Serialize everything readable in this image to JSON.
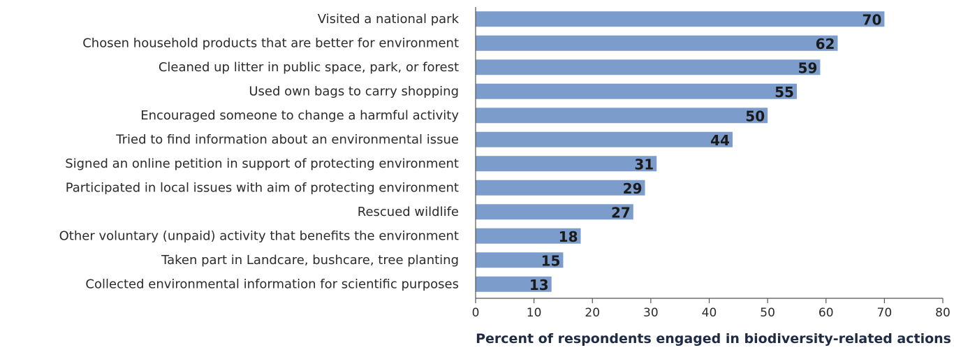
{
  "chart_data": {
    "type": "bar",
    "orientation": "horizontal",
    "categories": [
      "Visited a national park",
      "Chosen household products that are better for environment",
      "Cleaned up litter in public space, park, or forest",
      "Used own bags to carry shopping",
      "Encouraged someone to change a harmful activity",
      "Tried to find information about an environmental issue",
      "Signed an online petition in support of protecting environment",
      "Participated in local issues with aim of protecting environment",
      "Rescued wildlife",
      "Other voluntary (unpaid) activity that benefits the environment",
      "Taken part in Landcare, bushcare, tree planting",
      "Collected environmental information for scientific purposes"
    ],
    "values": [
      70,
      62,
      59,
      55,
      50,
      44,
      31,
      29,
      27,
      18,
      15,
      13
    ],
    "data_labels": [
      "70",
      "62",
      "59",
      "55",
      "50",
      "44",
      "31",
      "29",
      "27",
      "18",
      "15",
      "13"
    ],
    "xticks": [
      0,
      10,
      20,
      30,
      40,
      50,
      60,
      70,
      80
    ],
    "xtick_labels": [
      "0",
      "10",
      "20",
      "30",
      "40",
      "50",
      "60",
      "70",
      "80"
    ],
    "xlim": [
      0,
      80
    ],
    "xlabel": "Percent of respondents engaged in biodiversity-related actions",
    "ylabel": "",
    "title": "",
    "grid": false,
    "legend": "none",
    "colors": {
      "bar": "#7c9dcc",
      "axis": "#555555",
      "axis_title": "#1f2a44"
    }
  }
}
